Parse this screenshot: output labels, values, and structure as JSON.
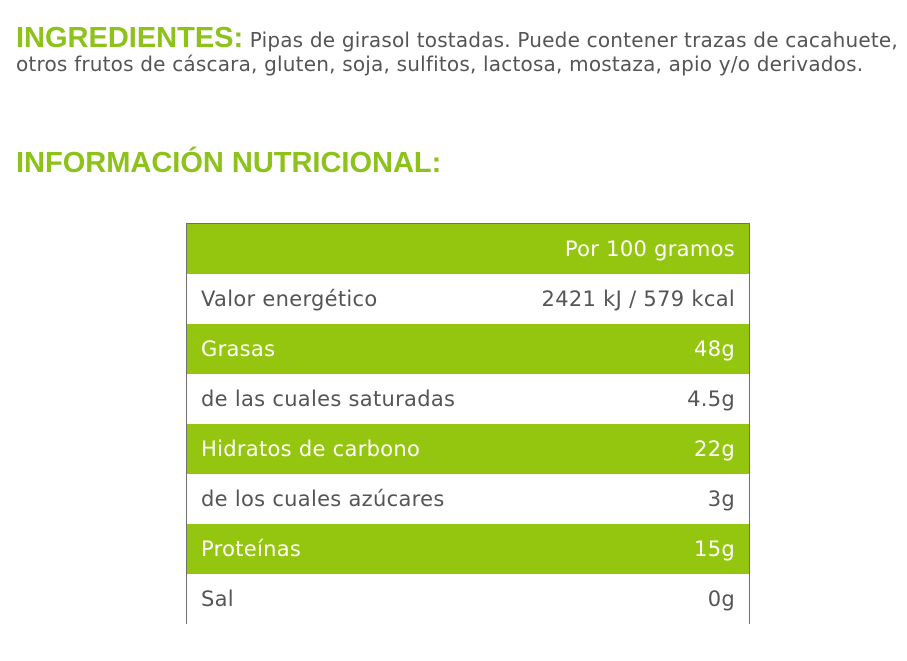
{
  "ingredients": {
    "label": "INGREDIENTES:",
    "text": "Pipas de girasol tostadas. Puede contener trazas de cacahuete, otros frutos de cáscara, gluten, soja, sulfitos, lactosa, mostaza, apio y/o derivados."
  },
  "nutrition": {
    "heading": "INFORMACIÓN NUTRICIONAL:",
    "column_header": "Por 100 gramos",
    "rows": [
      {
        "name": "Valor energético",
        "value": "2421 kJ / 579 kcal"
      },
      {
        "name": "Grasas",
        "value": "48g"
      },
      {
        "name": "de las cuales saturadas",
        "value": "4.5g"
      },
      {
        "name": "Hidratos de carbono",
        "value": "22g"
      },
      {
        "name": "de los cuales azúcares",
        "value": "3g"
      },
      {
        "name": "Proteínas",
        "value": "15g"
      },
      {
        "name": "Sal",
        "value": "0g"
      }
    ]
  },
  "colors": {
    "accent_green": "#8cc21a",
    "row_green": "#94c60f",
    "text_gray": "#555555"
  }
}
